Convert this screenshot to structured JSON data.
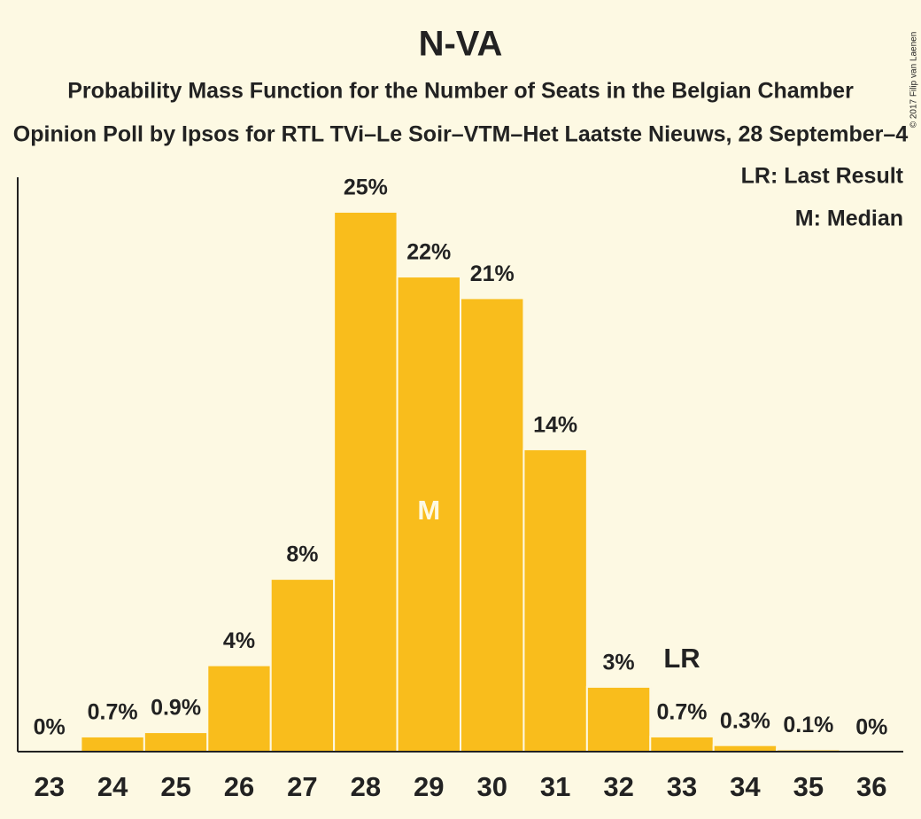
{
  "chart_data": {
    "type": "bar",
    "title": "N-VA",
    "subtitle": "Probability Mass Function for the Number of Seats in the Belgian Chamber",
    "subtitle2": "Opinion Poll by Ipsos for RTL TVi–Le Soir–VTM–Het Laatste Nieuws, 28 September–4",
    "copyright": "© 2017 Filip van Laenen",
    "categories": [
      23,
      24,
      25,
      26,
      27,
      28,
      29,
      30,
      31,
      32,
      33,
      34,
      35,
      36
    ],
    "values": [
      0,
      0.7,
      0.9,
      4,
      8,
      25,
      22,
      21,
      14,
      3,
      0.7,
      0.3,
      0.1,
      0
    ],
    "value_labels": [
      "0%",
      "0.7%",
      "0.9%",
      "4%",
      "8%",
      "25%",
      "22%",
      "21%",
      "14%",
      "3%",
      "0.7%",
      "0.3%",
      "0.1%",
      "0%"
    ],
    "color": "#f9bd1c",
    "ylim": [
      0,
      26.6
    ],
    "markers": [
      {
        "text": "M",
        "at": 29
      },
      {
        "text": "LR",
        "at": 33
      }
    ],
    "legend": [
      "LR: Last Result",
      "M: Median"
    ],
    "legend_position": "top-right"
  }
}
